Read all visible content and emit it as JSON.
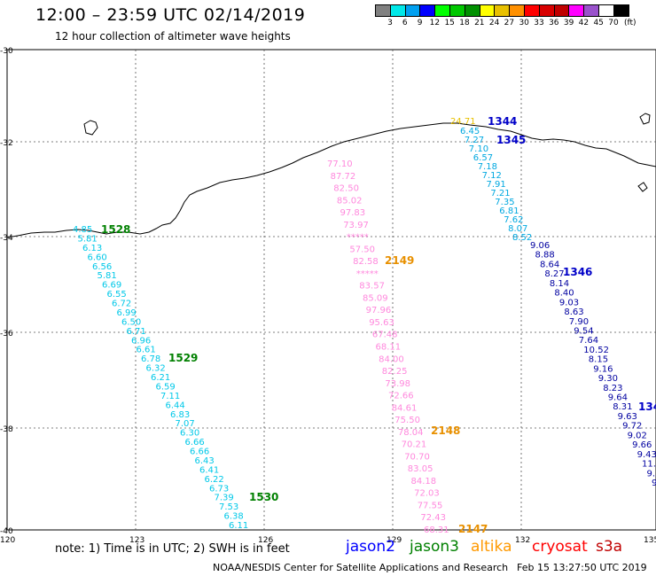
{
  "header": {
    "title": "12:00 – 23:59 UTC 02/14/2019",
    "subtitle": "12 hour collection of altimeter wave heights"
  },
  "colorbar": {
    "colors": [
      "#808080",
      "#00e8e8",
      "#00a0f0",
      "#0000ff",
      "#00ff00",
      "#00c800",
      "#009000",
      "#ffff00",
      "#e8c000",
      "#ff9000",
      "#ff0000",
      "#d80000",
      "#c00000",
      "#ff00ff",
      "#9a52cc",
      "#ffffff",
      "#000000"
    ],
    "labels": [
      "3",
      "6",
      "9",
      "12",
      "15",
      "18",
      "21",
      "24",
      "27",
      "30",
      "33",
      "36",
      "39",
      "42",
      "45",
      "70"
    ],
    "unit": "(ft)"
  },
  "axes": {
    "lon_ticks": [
      "120",
      "123",
      "126",
      "129",
      "132",
      "135"
    ],
    "lat_ticks": [
      "30",
      "32",
      "34",
      "36",
      "38",
      "40"
    ]
  },
  "passes": [
    {
      "satellite": "jason3",
      "time_labels": [
        "1528",
        "1529",
        "1530"
      ],
      "values": [
        "4.85",
        "5.81",
        "6.13",
        "6.60",
        "6.56",
        "5.81",
        "6.69",
        "6.55",
        "6.72",
        "6.99",
        "6.50",
        "6.71",
        "6.96",
        "6.61",
        "6.78",
        "6.32",
        "6.21",
        "6.59",
        "7.11",
        "6.44",
        "6.83",
        "7.07",
        "6.30",
        "6.66",
        "6.66",
        "6.43",
        "6.41",
        "6.22",
        "6.73",
        "7.39",
        "7.53",
        "6.38",
        "6.11"
      ]
    },
    {
      "satellite": "altika",
      "time_labels": [
        "2149",
        "2148",
        "2147"
      ],
      "values": [
        "77.10",
        "87.72",
        "82.50",
        "85.02",
        "97.83",
        "73.97",
        "*****",
        "57.50",
        "82.58",
        "*****",
        "83.57",
        "85.09",
        "97.96",
        "95.63",
        "67.48",
        "68.11",
        "84.00",
        "82.25",
        "73.98",
        "72.66",
        "84.61",
        "75.50",
        "78.04",
        "70.21",
        "70.70",
        "83.05",
        "84.18",
        "72.03",
        "77.55",
        "72.43",
        "68.31"
      ]
    },
    {
      "satellite": "jason2",
      "time_labels": [
        "1344",
        "1345",
        "1346",
        "134"
      ],
      "values_a": [
        "24.71",
        "6.45",
        "7.27",
        "7.10",
        "6.57",
        "7.18",
        "7.12",
        "7.91",
        "7.21",
        "7.35",
        "6.81",
        "7.62",
        "8.07",
        "8.52",
        "9.06",
        "8.88",
        "8.64",
        "8.27",
        "8.14",
        "8.40",
        "9.03",
        "8.63",
        "7.90",
        "9.54",
        "7.64",
        "10.52",
        "8.15",
        "9.16",
        "9.30",
        "8.23",
        "9.64",
        "8.31",
        "9.63",
        "9.72",
        "9.02",
        "9.66",
        "9.43",
        "11.2",
        "9.5",
        "9"
      ]
    }
  ],
  "legend": {
    "note": "note:  1) Time is in UTC;  2) SWH is in feet",
    "items": [
      {
        "name": "jason2",
        "color": "#0000ff"
      },
      {
        "name": "jason3",
        "color": "#008000"
      },
      {
        "name": "altika",
        "color": "#ff9900"
      },
      {
        "name": "cryosat",
        "color": "#ff0000"
      },
      {
        "name": "s3a",
        "color": "#c00000"
      }
    ]
  },
  "footer": {
    "credit": "NOAA/NESDIS Center for Satellite Applications and Research",
    "timestamp": "Feb 15 13:27:50 UTC 2019"
  }
}
